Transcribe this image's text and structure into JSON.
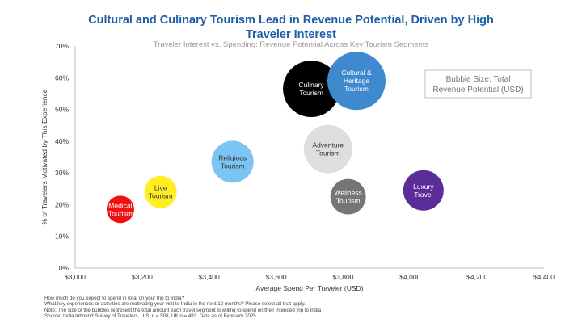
{
  "chart_data": {
    "type": "bubble",
    "title": "Cultural and Culinary Tourism Lead in Revenue Potential, Driven by High Traveler Interest",
    "subtitle": "Traveler Interest vs. Spending: Revenue Potential Across Key Tourism Segments",
    "xlabel": "Average Spend Per Traveler (USD)",
    "ylabel": "% of Travelers Motivated by This Experience",
    "xlim": [
      3000,
      4400
    ],
    "ylim": [
      0,
      0.7
    ],
    "x_ticks": [
      3000,
      3200,
      3400,
      3600,
      3800,
      4000,
      4200,
      4400
    ],
    "x_tick_labels": [
      "$3,000",
      "$3,200",
      "$3,400",
      "$3,600",
      "$3,800",
      "$4,000",
      "$4,200",
      "$4,400"
    ],
    "y_ticks": [
      0,
      0.1,
      0.2,
      0.3,
      0.4,
      0.5,
      0.6,
      0.7
    ],
    "y_tick_labels": [
      "0%",
      "10%",
      "20%",
      "30%",
      "40%",
      "50%",
      "60%",
      "70%"
    ],
    "grid": false,
    "legend_text": [
      "Bubble Size: Total",
      "Revenue Potential (USD)"
    ],
    "points": [
      {
        "label": [
          "Medical",
          "Tourism"
        ],
        "x": 3135,
        "y": 0.185,
        "size": 17,
        "color": "#ee1111",
        "text_color": "#ffffff"
      },
      {
        "label": [
          "Live",
          "Tourism"
        ],
        "x": 3255,
        "y": 0.24,
        "size": 20,
        "color": "#ffee22",
        "text_color": "#333333"
      },
      {
        "label": [
          "Religious",
          "Tourism"
        ],
        "x": 3470,
        "y": 0.335,
        "size": 26,
        "color": "#7cc4f4",
        "text_color": "#333333"
      },
      {
        "label": [
          "Culinary",
          "Tourism"
        ],
        "x": 3705,
        "y": 0.565,
        "size": 35,
        "color": "#000000",
        "text_color": "#ffffff"
      },
      {
        "label": [
          "Cultural &",
          "Heritage",
          "Tourism"
        ],
        "x": 3840,
        "y": 0.59,
        "size": 36,
        "color": "#3f89cf",
        "text_color": "#ffffff"
      },
      {
        "label": [
          "Adventure",
          "Tourism"
        ],
        "x": 3755,
        "y": 0.375,
        "size": 30,
        "color": "#dedede",
        "text_color": "#333333"
      },
      {
        "label": [
          "Wellness",
          "Tourism"
        ],
        "x": 3815,
        "y": 0.225,
        "size": 22,
        "color": "#757575",
        "text_color": "#ffffff"
      },
      {
        "label": [
          "Luxury",
          "Travel"
        ],
        "x": 4040,
        "y": 0.245,
        "size": 25,
        "color": "#5b2d9a",
        "text_color": "#ffffff"
      }
    ]
  },
  "notes": [
    "How much do you expect to spend in total on your trip to India?",
    "What key experiences or activities are motivating your visit to India in the next 12 months?  Please select all that apply.",
    "Note: The size of the bubbles represent the total amount each travel segment is willing to spend on their intended trip to India",
    "Source: India Inbound Survey of Travelers, U.S. n = 508, UK n  = 493. Data as of February 2025"
  ]
}
